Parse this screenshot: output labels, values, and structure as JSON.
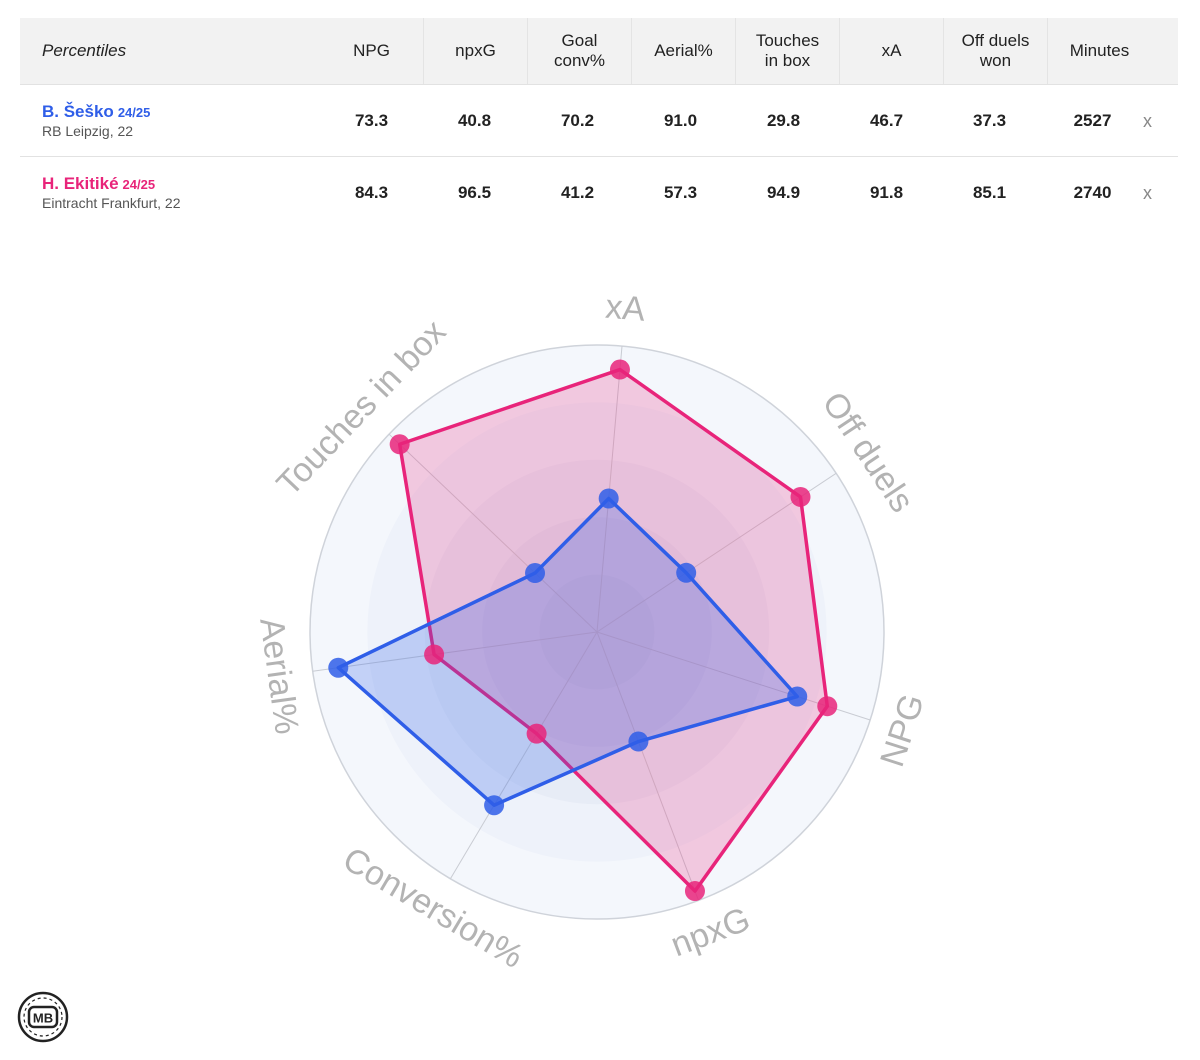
{
  "table": {
    "header_label": "Percentiles",
    "columns": [
      [
        "NPG"
      ],
      [
        "npxG"
      ],
      [
        "Goal",
        "conv%"
      ],
      [
        "Aerial%"
      ],
      [
        "Touches",
        "in box"
      ],
      [
        "xA"
      ],
      [
        "Off duels",
        "won"
      ],
      [
        "Minutes"
      ]
    ],
    "players": [
      {
        "name": "B. Šeško",
        "season": "24/25",
        "team": "RB Leipzig, 22",
        "color": "#2f5ee8",
        "values": [
          "73.3",
          "40.8",
          "70.2",
          "91.0",
          "29.8",
          "46.7",
          "37.3",
          "2527"
        ],
        "remove_label": "x"
      },
      {
        "name": "H. Ekitiké",
        "season": "24/25",
        "team": "Eintracht Frankfurt, 22",
        "color": "#e8247a",
        "values": [
          "84.3",
          "96.5",
          "41.2",
          "57.3",
          "94.9",
          "91.8",
          "85.1",
          "2740"
        ],
        "remove_label": "x"
      }
    ]
  },
  "chart_data": {
    "type": "radar",
    "axes": [
      "xA",
      "Off duels",
      "NPG",
      "npxG",
      "Conversion%",
      "Aerial%",
      "Touches in box"
    ],
    "range": [
      0,
      100
    ],
    "series": [
      {
        "name": "B. Šeško 24/25",
        "color": "#2f5ee8",
        "values": [
          46.7,
          37.3,
          73.3,
          40.8,
          70.2,
          91.0,
          29.8
        ]
      },
      {
        "name": "H. Ekitiké 24/25",
        "color": "#e8247a",
        "values": [
          91.8,
          85.1,
          84.3,
          96.5,
          41.2,
          57.3,
          94.9
        ]
      }
    ]
  },
  "logo": {
    "text": "MB"
  }
}
